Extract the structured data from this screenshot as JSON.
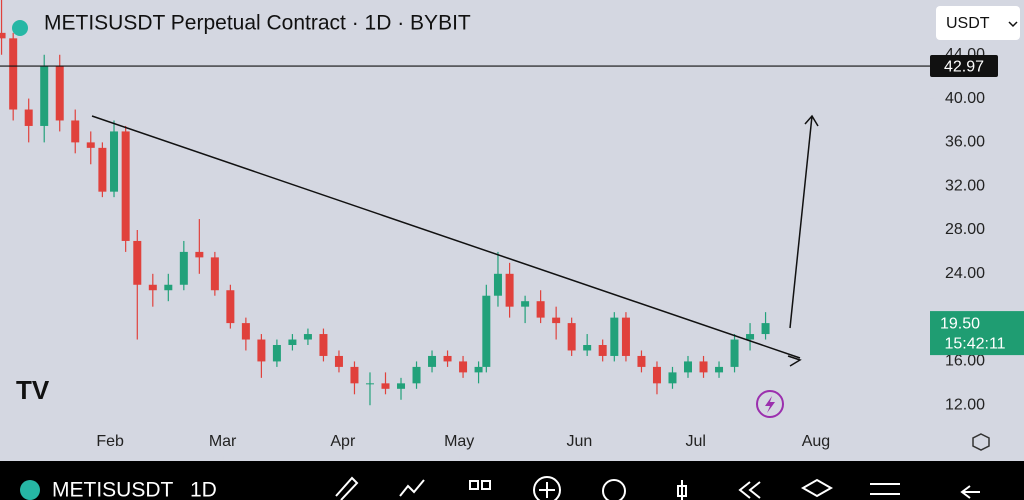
{
  "chart_data": {
    "type": "candlestick",
    "title": "METISUSDT Perpetual Contract · 1D · BYBIT",
    "x": [
      3,
      6,
      10,
      14,
      18,
      22,
      26,
      29,
      32,
      35,
      38,
      42,
      46,
      50,
      54,
      58,
      62,
      66,
      70,
      74,
      78,
      82,
      86,
      90,
      94,
      98,
      102,
      106,
      110,
      114,
      118,
      122,
      126,
      128,
      131,
      134,
      138,
      142,
      146,
      150,
      154,
      158,
      161,
      164,
      168,
      172,
      176,
      180,
      184,
      188,
      192,
      196,
      200
    ],
    "open": [
      46,
      45.5,
      39,
      37.5,
      43,
      38,
      36,
      35.5,
      31.5,
      37,
      27,
      23,
      22.5,
      23,
      26,
      25.5,
      22.5,
      19.5,
      18,
      16,
      17.5,
      18,
      18.5,
      16.5,
      15.5,
      14,
      14,
      13.5,
      14,
      15.5,
      16.5,
      16,
      15,
      15.5,
      22,
      24,
      21,
      21.5,
      20,
      19.5,
      17,
      17.5,
      16.5,
      20,
      16.5,
      15.5,
      14,
      15,
      16,
      15,
      15.5,
      18,
      18.5
    ],
    "high": [
      49,
      46,
      40,
      44,
      44,
      39,
      37,
      36,
      38,
      37.5,
      28,
      24,
      24,
      27,
      29,
      26,
      23,
      20,
      18.5,
      18,
      18.5,
      19,
      19,
      17,
      16,
      15,
      15,
      14.5,
      16,
      17,
      17,
      16.5,
      16,
      23,
      26,
      25,
      22,
      22.5,
      21,
      20,
      18.5,
      18,
      20.5,
      20.5,
      17,
      16,
      15.5,
      16.5,
      16.5,
      16,
      18.5,
      19.5,
      20.5
    ],
    "low": [
      44,
      38,
      36,
      36,
      37,
      35,
      34,
      31,
      31,
      26,
      18,
      21,
      21.5,
      22.5,
      24,
      22,
      19,
      17,
      14.5,
      15.5,
      17,
      17.5,
      16,
      15,
      13,
      12,
      13,
      12.5,
      13.5,
      15,
      15.5,
      14.5,
      14,
      15,
      21,
      20,
      19.5,
      19.5,
      18,
      16.5,
      16.5,
      16,
      16,
      16,
      15,
      13,
      13.5,
      14.5,
      14.5,
      14.5,
      15,
      17,
      18
    ],
    "close": [
      45.5,
      39,
      37.5,
      43,
      38,
      36,
      35.5,
      31.5,
      37,
      27,
      23,
      22.5,
      23,
      26,
      25.5,
      22.5,
      19.5,
      18,
      16,
      17.5,
      18,
      18.5,
      16.5,
      15.5,
      14,
      14,
      13.5,
      14,
      15.5,
      16.5,
      16,
      15,
      15.5,
      22,
      24,
      21,
      21.5,
      20,
      19.5,
      17,
      17.5,
      16.5,
      20,
      16.5,
      15.5,
      14,
      15,
      16,
      15,
      15.5,
      18,
      18.5,
      19.5
    ],
    "up_color": "#22a17a",
    "down_color": "#e0413c",
    "xlim": [
      2.6,
      242.4
    ],
    "ylim": [
      7,
      49
    ],
    "xticks": [
      {
        "value": 31,
        "label": "Feb"
      },
      {
        "value": 60,
        "label": "Mar"
      },
      {
        "value": 91,
        "label": "Apr"
      },
      {
        "value": 121,
        "label": "May"
      },
      {
        "value": 152,
        "label": "Jun"
      },
      {
        "value": 182,
        "label": "Jul"
      },
      {
        "value": 213,
        "label": "Aug"
      }
    ],
    "yticks": [
      {
        "value": 44,
        "label": "44.00"
      },
      {
        "value": 40,
        "label": "40.00"
      },
      {
        "value": 36,
        "label": "36.00"
      },
      {
        "value": 32,
        "label": "32.00"
      },
      {
        "value": 28,
        "label": "28.00"
      },
      {
        "value": 24,
        "label": "24.00"
      },
      {
        "value": 16,
        "label": "16.00"
      },
      {
        "value": 12,
        "label": "12.00"
      }
    ],
    "hline": {
      "value": 42.97,
      "label": "42.97"
    },
    "last_price": {
      "value": 19.5,
      "label": "19.50"
    },
    "countdown": "15:42:11"
  },
  "ui": {
    "currency": "USDT",
    "symbol": "METISUSDT",
    "interval": "1D"
  }
}
